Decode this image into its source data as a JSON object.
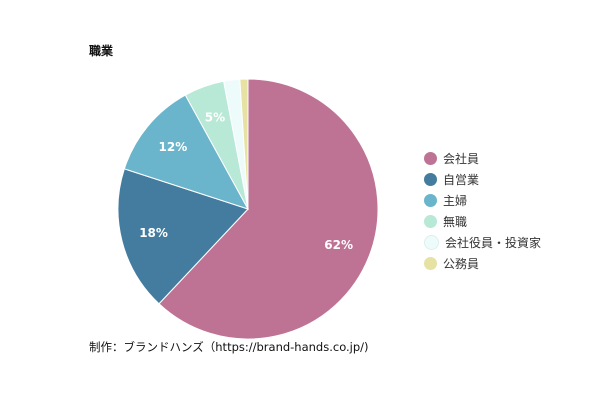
{
  "chart_data": {
    "type": "pie",
    "title": "職業",
    "categories": [
      "会社員",
      "自営業",
      "主婦",
      "無職",
      "会社役員・投資家",
      "公務員"
    ],
    "values": [
      62,
      18,
      12,
      5,
      2,
      1
    ],
    "labels": [
      "62%",
      "18%",
      "12%",
      "5%",
      "",
      ""
    ],
    "colors": [
      "#bf7394",
      "#447c9f",
      "#6ab5cb",
      "#b8e8d6",
      "#eefbfb",
      "#e6e2a4"
    ],
    "legend_position": "right"
  },
  "footer": {
    "credit": "制作：ブランドハンズ（https://brand-hands.co.jp/)"
  }
}
